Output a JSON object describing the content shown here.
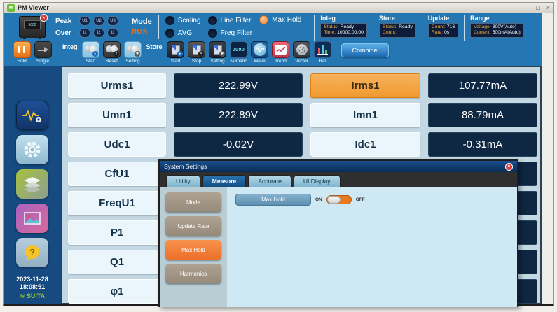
{
  "window": {
    "title": "PM Viewer",
    "app_icon_glyph": "≋",
    "controls": {
      "minimize": "─",
      "maximize": "□",
      "close": "×"
    }
  },
  "header": {
    "peak_over": {
      "peak": "Peak",
      "over": "Over",
      "u_items": [
        "U1",
        "U2",
        "U3"
      ],
      "i_items": [
        "I1",
        "I2",
        "I3"
      ]
    },
    "mode": {
      "label": "Mode",
      "value": "RMS"
    },
    "filters": {
      "scaling": "Scaling",
      "avg": "AVG",
      "line_filter": "Line Filter",
      "freq_filter": "Freq Filter",
      "max_hold": "Max Hold",
      "max_hold_on": true
    },
    "info_sections": [
      {
        "title": "Integ",
        "lines": [
          {
            "label": "Status:",
            "value": "Ready"
          },
          {
            "label": "Time:",
            "value": "10000:00:00"
          }
        ]
      },
      {
        "title": "Store",
        "lines": [
          {
            "label": "Status:",
            "value": "Ready"
          },
          {
            "label": "Count:",
            "value": ""
          }
        ]
      },
      {
        "title": "Update",
        "lines": [
          {
            "label": "Count:",
            "value": "716"
          },
          {
            "label": "Rate:",
            "value": "0s"
          }
        ]
      },
      {
        "title": "Range",
        "lines": [
          {
            "label": "Voltage:",
            "value": "300V(Auto)"
          },
          {
            "label": "Current:",
            "value": "500mA(Auto)"
          }
        ]
      }
    ]
  },
  "toolbar": {
    "hold": "Hold",
    "single": "Single",
    "integ_group": "Integ",
    "integ_start": "Start",
    "integ_reset": "Reset",
    "integ_setting": "Setting",
    "store_group": "Store",
    "store_start": "Start",
    "store_stop": "Stop",
    "store_setting": "Setting",
    "numeric": "Numeric",
    "numeric_glyph": "0000",
    "wave": "Wave",
    "trend": "Trend",
    "vector": "Vector",
    "bar": "Bar",
    "combine": "Combine"
  },
  "sidebar": {
    "date": "2023-11-28",
    "time": "18:08:51",
    "brand": "≋ SUITA"
  },
  "grid": {
    "rows": [
      {
        "c1": "Urms1",
        "v1": "222.99V",
        "c2": "Irms1",
        "v2": "107.77mA",
        "c2_active": true
      },
      {
        "c1": "Umn1",
        "v1": "222.89V",
        "c2": "Imn1",
        "v2": "88.79mA",
        "c2_active": false
      },
      {
        "c1": "Udc1",
        "v1": "-0.02V",
        "c2": "Idc1",
        "v2": "-0.31mA",
        "c2_active": false
      },
      {
        "c1": "CfU1",
        "v1": "",
        "c2": "",
        "v2": "",
        "c2_active": false
      },
      {
        "c1": "FreqU1",
        "v1": "",
        "c2": "",
        "v2": "",
        "c2_active": false
      },
      {
        "c1": "P1",
        "v1": "",
        "c2": "",
        "v2": "",
        "c2_active": false
      },
      {
        "c1": "Q1",
        "v1": "",
        "c2": "",
        "v2": "",
        "c2_active": false
      },
      {
        "c1": "φ1",
        "v1": "",
        "c2": "",
        "v2": "",
        "c2_active": false
      }
    ]
  },
  "modal": {
    "title": "System Settings",
    "close_glyph": "×",
    "tabs": [
      {
        "label": "Utility",
        "active": false
      },
      {
        "label": "Measure",
        "active": true
      },
      {
        "label": "Accurate",
        "active": false
      },
      {
        "label": "UI Display",
        "active": false
      }
    ],
    "side_buttons": [
      {
        "label": "Mode",
        "active": false
      },
      {
        "label": "Update Rate",
        "active": false
      },
      {
        "label": "Max Hold",
        "active": true
      },
      {
        "label": "Harmonics",
        "active": false
      }
    ],
    "content": {
      "setting_label": "Max Hold",
      "on": "ON",
      "off": "OFF",
      "toggle_state": "on"
    }
  },
  "colors": {
    "accent_orange": "#f08a3c",
    "header_blue": "#2477b2",
    "sidebar_navy": "#164a80",
    "value_navy": "#0e2742",
    "active_cell_orange": "#f6a33f",
    "modal_active_btn": "#ec6f28"
  }
}
